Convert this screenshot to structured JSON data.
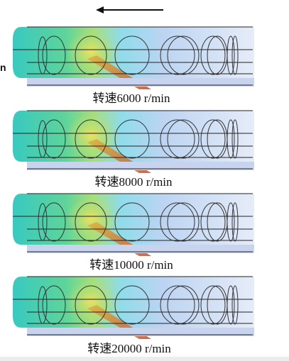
{
  "side_label": "n",
  "captions": [
    "转速6000 r/min",
    "转速8000 r/min",
    "转速10000 r/min",
    "转速20000 r/min"
  ]
}
